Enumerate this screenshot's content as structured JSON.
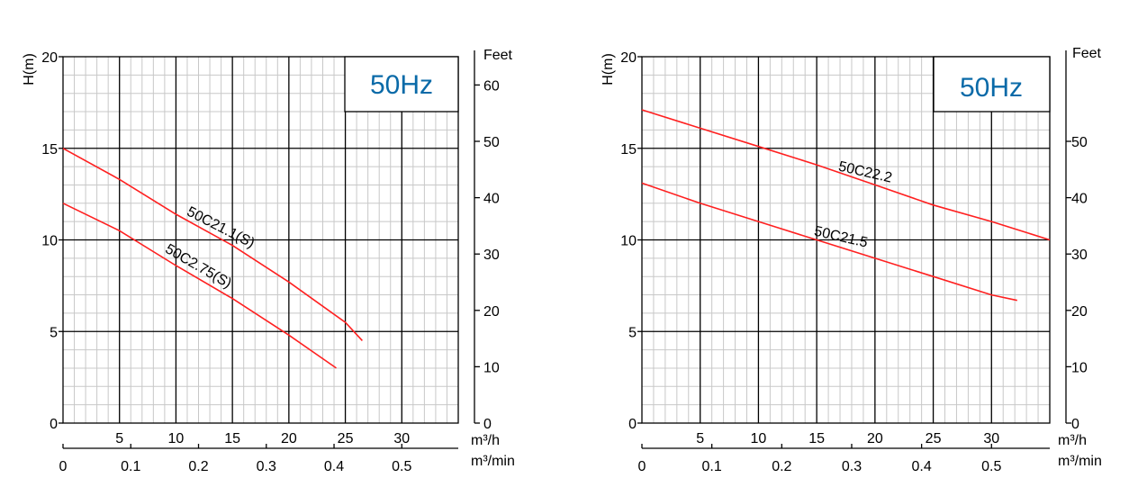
{
  "charts": [
    {
      "hz_label": "50Hz",
      "y_left_label": "H(m)",
      "y_right_label": "Feet",
      "x_unit_flow_h": "m³/h",
      "x_unit_flow_min": "m³/min",
      "y_ticks": [
        "0",
        "5",
        "10",
        "15",
        "20"
      ],
      "feet_ticks": [
        "0",
        "10",
        "20",
        "30",
        "40",
        "50",
        "60"
      ],
      "x_ticks_h": [
        "5",
        "10",
        "15",
        "20",
        "25",
        "30"
      ],
      "x_ticks_min": [
        "0",
        "0.1",
        "0.2",
        "0.3",
        "0.4",
        "0.5"
      ]
    },
    {
      "hz_label": "50Hz",
      "y_left_label": "H(m)",
      "y_right_label": "Feet",
      "x_unit_flow_h": "m³/h",
      "x_unit_flow_min": "m³/min",
      "y_ticks": [
        "0",
        "5",
        "10",
        "15",
        "20"
      ],
      "feet_ticks": [
        "0",
        "10",
        "20",
        "30",
        "40",
        "50"
      ],
      "x_ticks_h": [
        "5",
        "10",
        "15",
        "20",
        "25",
        "30"
      ],
      "x_ticks_min": [
        "0",
        "0.1",
        "0.2",
        "0.3",
        "0.4",
        "0.5"
      ]
    }
  ],
  "colors": {
    "curve": "#ff2020",
    "hz_text": "#0a6aa8",
    "grid_major": "#000000",
    "grid_minor": "#c8c8c8"
  },
  "chart_data": [
    {
      "type": "line",
      "xlabel": "m³/h",
      "x2label": "m³/min",
      "ylabel": "H(m)",
      "y2label": "Feet",
      "xlim": [
        0,
        35
      ],
      "ylim": [
        0,
        20
      ],
      "series": [
        {
          "name": "50C21.1(S)",
          "x": [
            0,
            5,
            10,
            15,
            20,
            25,
            26.5
          ],
          "y": [
            15,
            13.3,
            11.4,
            9.7,
            7.7,
            5.5,
            4.5
          ]
        },
        {
          "name": "50C2.75(S)",
          "x": [
            0,
            5,
            10,
            15,
            20,
            24.2
          ],
          "y": [
            12,
            10.5,
            8.6,
            6.8,
            4.8,
            3
          ]
        }
      ]
    },
    {
      "type": "line",
      "xlabel": "m³/h",
      "x2label": "m³/min",
      "ylabel": "H(m)",
      "y2label": "Feet",
      "xlim": [
        0,
        35
      ],
      "ylim": [
        0,
        20
      ],
      "series": [
        {
          "name": "50C22.2",
          "x": [
            0,
            5,
            10,
            15,
            20,
            25,
            30,
            35
          ],
          "y": [
            17.1,
            16.1,
            15.1,
            14.1,
            13,
            11.9,
            11,
            10
          ]
        },
        {
          "name": "50C21.5",
          "x": [
            0,
            5,
            10,
            15,
            20,
            25,
            30,
            32.2
          ],
          "y": [
            13.1,
            12,
            11,
            10,
            9,
            8,
            7,
            6.7
          ]
        }
      ]
    }
  ]
}
